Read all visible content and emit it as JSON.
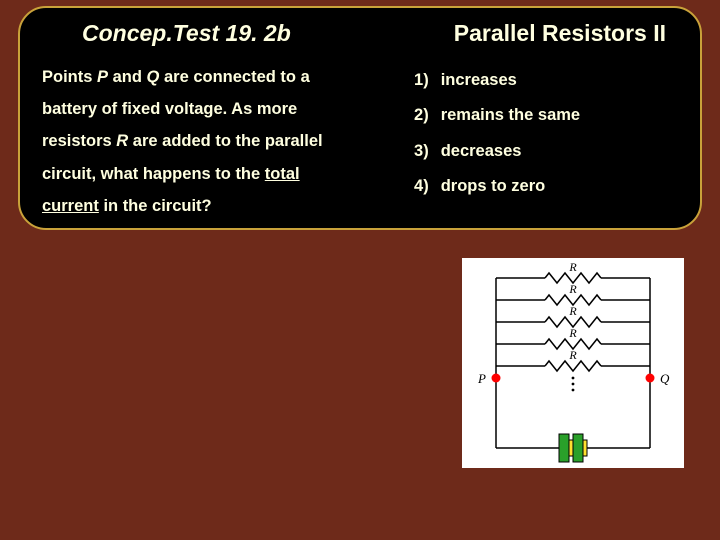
{
  "header": {
    "title_left": "Concep.Test 19. 2b",
    "title_right": "Parallel Resistors II"
  },
  "question": {
    "l1a": "Points ",
    "l1_p": "P",
    "l1b": " and ",
    "l1_q": "Q",
    "l1c": " are connected to a",
    "l2": "battery of fixed voltage.  As more",
    "l3a": "resistors ",
    "l3_r": "R",
    "l3b": " are added to the parallel",
    "l4a": "circuit, what happens to the ",
    "l4_total": "total",
    "l5_current": "current",
    "l5b": " in the circuit?"
  },
  "options": [
    {
      "num": "1)",
      "text": "increases"
    },
    {
      "num": "2)",
      "text": "remains the same"
    },
    {
      "num": "3)",
      "text": "decreases"
    },
    {
      "num": "4)",
      "text": "drops to zero"
    }
  ],
  "diagram": {
    "label_P": "P",
    "label_Q": "Q",
    "label_R": "R",
    "colors": {
      "bg": "#ffffff",
      "wire": "#000000",
      "node": "#ff0000",
      "battery_plus": "#2aa02a",
      "battery_minus": "#ffe030"
    }
  }
}
